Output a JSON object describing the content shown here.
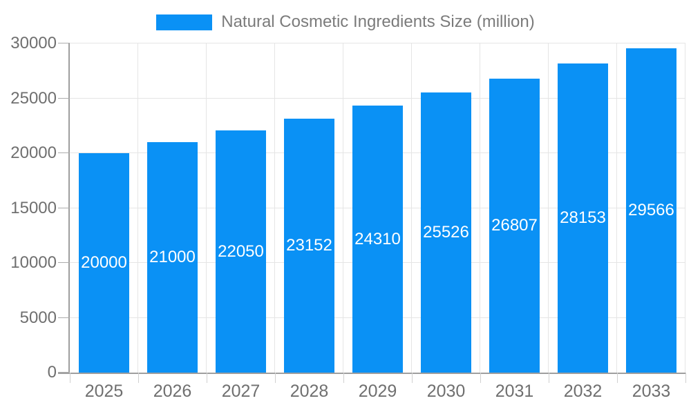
{
  "legend": {
    "label": "Natural Cosmetic Ingredients Size (million)"
  },
  "chart_data": {
    "type": "bar",
    "title": "Natural Cosmetic Ingredients Size (million)",
    "categories": [
      "2025",
      "2026",
      "2027",
      "2028",
      "2029",
      "2030",
      "2031",
      "2032",
      "2033"
    ],
    "values": [
      20000,
      21000,
      22050,
      23152,
      24310,
      25526,
      26807,
      28153,
      29566
    ],
    "bar_value_labels": [
      "20000",
      "21000",
      "22050",
      "23152",
      "24310",
      "25526",
      "26807",
      "28153",
      "29566"
    ],
    "xlabel": "",
    "ylabel": "",
    "ylim": [
      0,
      30000
    ],
    "yticks": [
      0,
      5000,
      10000,
      15000,
      20000,
      25000,
      30000
    ],
    "ytick_labels": [
      "0",
      "5000",
      "10000",
      "15000",
      "20000",
      "25000",
      "30000"
    ],
    "grid": true,
    "legend_position": "top-center",
    "colors": {
      "bar": "#0a91f5",
      "bar_label": "#ffffff",
      "axis_text": "#6f6f6f",
      "legend_text": "#7b7b7b",
      "grid_line": "#e5e5e5",
      "axis_line": "#9e9e9e",
      "tick_line": "#c6c6c6",
      "background": "#ffffff"
    }
  }
}
